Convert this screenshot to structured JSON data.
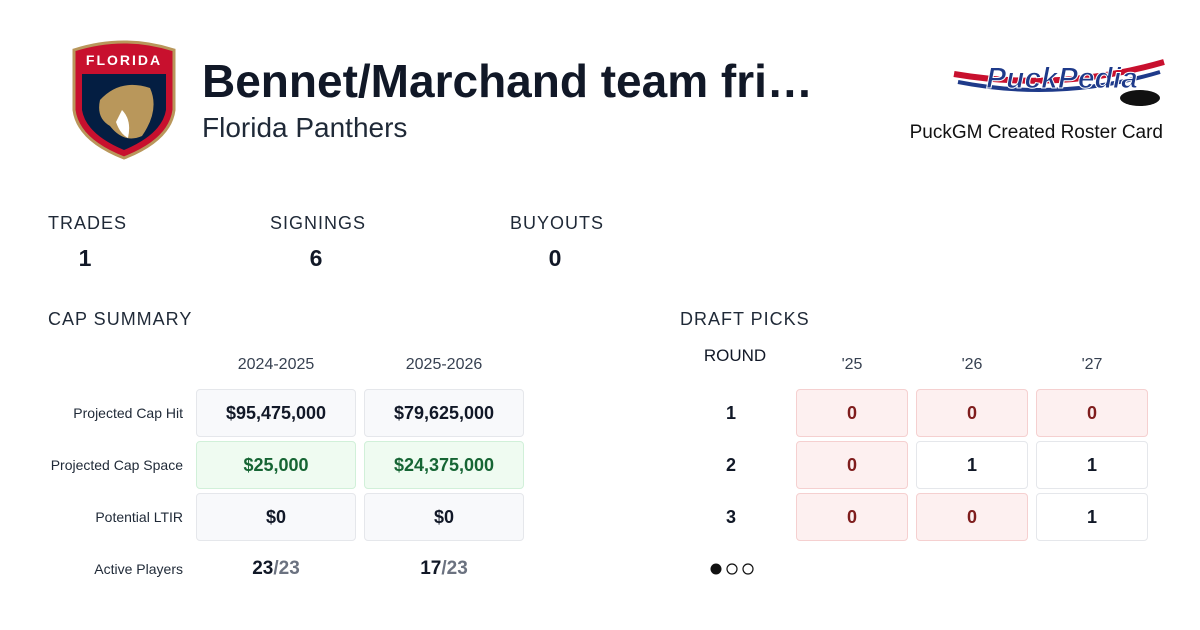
{
  "header": {
    "title": "Bennet/Marchand team fri…",
    "subtitle": "Florida Panthers",
    "team_logo_text": "FLORIDA",
    "brand_logo_text": "PuckPedia",
    "brand_caption": "PuckGM Created Roster Card"
  },
  "stats": [
    {
      "label": "TRADES",
      "value": 1
    },
    {
      "label": "SIGNINGS",
      "value": 6
    },
    {
      "label": "BUYOUTS",
      "value": 0
    }
  ],
  "cap_summary": {
    "title": "CAP SUMMARY",
    "columns": [
      "2024-2025",
      "2025-2026"
    ],
    "rows": [
      {
        "label": "Projected Cap Hit",
        "values": [
          "$95,475,000",
          "$79,625,000"
        ]
      },
      {
        "label": "Projected Cap Space",
        "values": [
          "$25,000",
          "$24,375,000"
        ],
        "highlight": true
      },
      {
        "label": "Potential LTIR",
        "values": [
          "$0",
          "$0"
        ]
      },
      {
        "label": "Active Players",
        "values": [
          "23/23",
          "17/23"
        ],
        "plain": true
      }
    ]
  },
  "draft_picks": {
    "title": "DRAFT PICKS",
    "round_label": "ROUND",
    "years": [
      "'25",
      "'26",
      "'27"
    ],
    "rows": [
      {
        "round": 1,
        "picks": [
          0,
          0,
          0
        ]
      },
      {
        "round": 2,
        "picks": [
          0,
          1,
          1
        ]
      },
      {
        "round": 3,
        "picks": [
          0,
          0,
          1
        ]
      }
    ]
  }
}
